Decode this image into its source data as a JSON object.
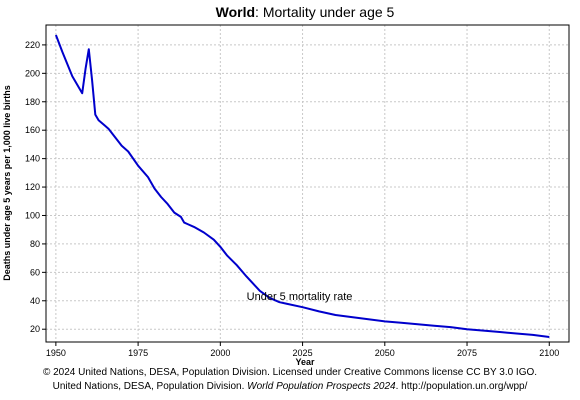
{
  "chart_data": {
    "type": "line",
    "title_bold": "World",
    "title_rest": ": Mortality under age 5",
    "xlabel": "Year",
    "ylabel": "Deaths under age 5 years per 1,000 live births",
    "xlim": [
      1947,
      2106
    ],
    "ylim": [
      11,
      234
    ],
    "x_ticks": [
      1950,
      1975,
      2000,
      2025,
      2050,
      2075,
      2100
    ],
    "y_ticks": [
      20,
      40,
      60,
      80,
      100,
      120,
      140,
      160,
      180,
      200,
      220
    ],
    "grid": true,
    "annotation": "Under 5 mortality rate",
    "annotation_anchor": [
      2008,
      40.5
    ],
    "line_color": "#0000cc",
    "series": [
      {
        "x": [
          1950,
          1952,
          1955,
          1958,
          1959,
          1960,
          1961,
          1962,
          1963,
          1965,
          1966,
          1968,
          1970,
          1972,
          1975,
          1978,
          1980,
          1982,
          1984,
          1986,
          1988,
          1989,
          1990,
          1992,
          1995,
          1998,
          2000,
          2002,
          2005,
          2008,
          2010,
          2012,
          2015,
          2018,
          2020,
          2025,
          2030,
          2035,
          2040,
          2045,
          2050,
          2055,
          2060,
          2065,
          2070,
          2075,
          2080,
          2085,
          2090,
          2095,
          2100
        ],
        "y": [
          227,
          215,
          198,
          186,
          203,
          217,
          195,
          171,
          167,
          163,
          161,
          155,
          149,
          145,
          135,
          127,
          119,
          113,
          108,
          102,
          99,
          95,
          94,
          92,
          88,
          83,
          78,
          72,
          65,
          57,
          52,
          47,
          42,
          39,
          38,
          35.5,
          32.5,
          30,
          28.5,
          27,
          25.5,
          24.5,
          23.5,
          22.5,
          21.5,
          20,
          19,
          18,
          17,
          16,
          14.5
        ]
      }
    ]
  },
  "footer": {
    "line1": "© 2024 United Nations, DESA, Population Division. Licensed under Creative Commons license CC BY 3.0 IGO.",
    "line2_a": "United Nations, DESA, Population Division. ",
    "line2_italic": "World Population Prospects 2024",
    "line2_b": ". http://population.un.org/wpp/"
  }
}
